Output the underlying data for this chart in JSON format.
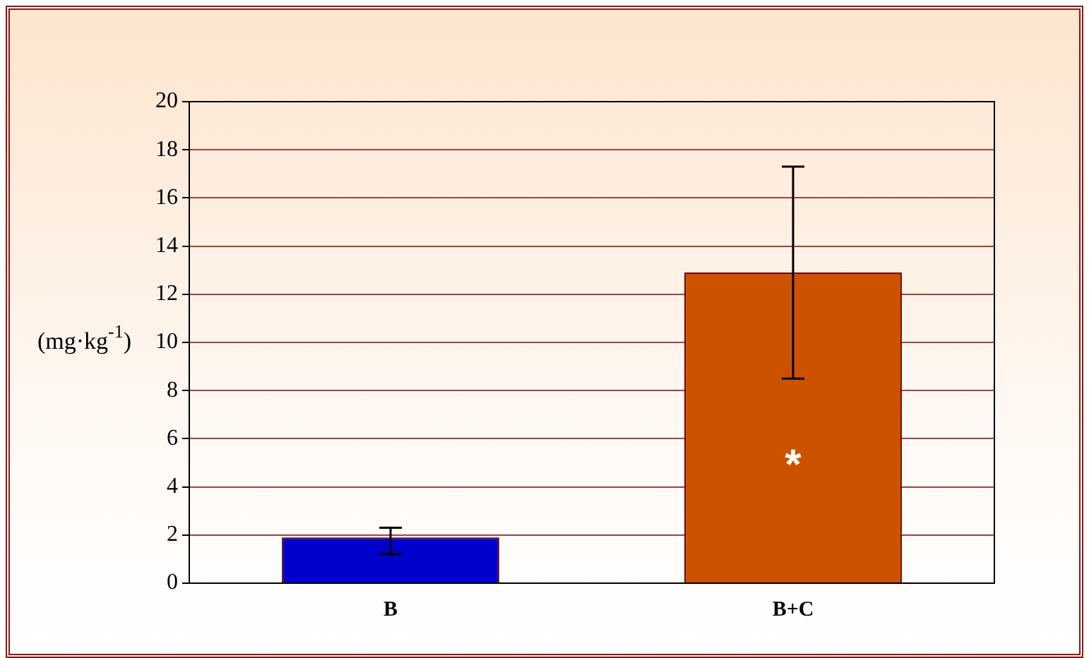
{
  "chart_data": {
    "type": "bar",
    "ylabel": "(mg·kg$^{-1}$)",
    "categories": [
      "B",
      "B+C"
    ],
    "values": [
      1.9,
      12.9
    ],
    "colors": [
      "#0000cc",
      "#cc5200"
    ],
    "errors": [
      [
        1.2,
        2.3
      ],
      [
        8.5,
        17.3
      ]
    ],
    "ylim": [
      0,
      20
    ],
    "yticks": [
      0,
      2,
      4,
      6,
      8,
      10,
      12,
      14,
      16,
      18,
      20
    ],
    "grid": "y",
    "legend": false,
    "annotations": [
      "*"
    ]
  }
}
